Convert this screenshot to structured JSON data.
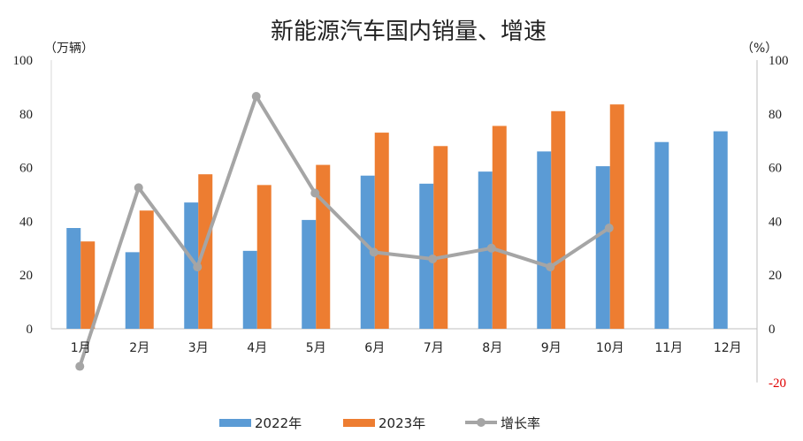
{
  "chart_data": {
    "type": "bar",
    "title": "新能源汽车国内销量、增速",
    "categories": [
      "1月",
      "2月",
      "3月",
      "4月",
      "5月",
      "6月",
      "7月",
      "8月",
      "9月",
      "10月",
      "11月",
      "12月"
    ],
    "series": [
      {
        "name": "2022年",
        "type": "bar",
        "axis": "left",
        "color": "#5B9BD5",
        "values": [
          37.5,
          28.5,
          47,
          29,
          40.5,
          57,
          54,
          58.5,
          66,
          60.5,
          69.5,
          73.5
        ]
      },
      {
        "name": "2023年",
        "type": "bar",
        "axis": "left",
        "color": "#ED7D31",
        "values": [
          32.5,
          44,
          57.5,
          53.5,
          61,
          73,
          68,
          75.5,
          81,
          83.5,
          null,
          null
        ]
      },
      {
        "name": "增长率",
        "type": "line",
        "axis": "right",
        "color": "#A5A5A5",
        "values": [
          -14,
          52.5,
          23,
          86.5,
          50.5,
          28.5,
          26,
          30,
          23,
          37.5,
          null,
          null
        ]
      }
    ],
    "left_axis": {
      "label": "（万辆）",
      "ylim": [
        0,
        100
      ],
      "ticks": [
        "0",
        "20",
        "40",
        "60",
        "80",
        "100"
      ]
    },
    "right_axis": {
      "label": "（%）",
      "ylim": [
        -20,
        100
      ],
      "ticks": [
        "-20",
        "0",
        "20",
        "40",
        "60",
        "80",
        "100"
      ],
      "negative_color": "#E00000"
    },
    "legend_position": "bottom"
  }
}
